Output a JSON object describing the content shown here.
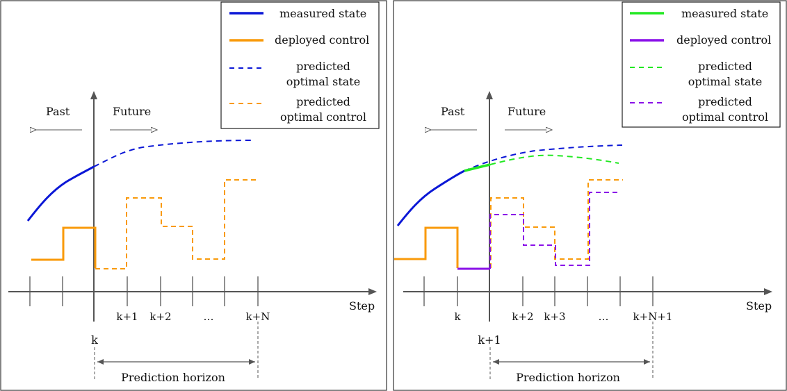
{
  "panels": [
    {
      "legend": {
        "items": [
          {
            "label": "measured state",
            "label2": "",
            "color": "#0b17d6",
            "style": "solid"
          },
          {
            "label": "deployed control",
            "label2": "",
            "color": "#f99a0a",
            "style": "solid"
          },
          {
            "label": "predicted",
            "label2": "optimal state",
            "color": "#0b17d6",
            "style": "dashed"
          },
          {
            "label": "predicted",
            "label2": "optimal control",
            "color": "#f99a0a",
            "style": "dashed"
          }
        ]
      },
      "past_label": "Past",
      "future_label": "Future",
      "axis_label": "Step",
      "current_step": "k",
      "ticks": [
        "k+1",
        "k+2",
        "…",
        "k+N"
      ],
      "horizon_label": "Prediction horizon"
    },
    {
      "legend": {
        "items": [
          {
            "label": "measured state",
            "label2": "",
            "color": "#22e822",
            "style": "solid"
          },
          {
            "label": "deployed control",
            "label2": "",
            "color": "#8a10e8",
            "style": "solid"
          },
          {
            "label": "predicted",
            "label2": "optimal state",
            "color": "#22e822",
            "style": "dashed"
          },
          {
            "label": "predicted",
            "label2": "optimal control",
            "color": "#8a10e8",
            "style": "dashed"
          }
        ]
      },
      "past_label": "Past",
      "future_label": "Future",
      "axis_label": "Step",
      "current_step": "k+1",
      "ticks": [
        "k",
        "k+2",
        "k+3",
        "…",
        "k+N+1"
      ],
      "horizon_label": "Prediction horizon"
    }
  ],
  "colors": {
    "blue": "#0b17d6",
    "orange": "#f99a0a",
    "green": "#22e822",
    "purple": "#8a10e8",
    "axis": "#555555"
  }
}
